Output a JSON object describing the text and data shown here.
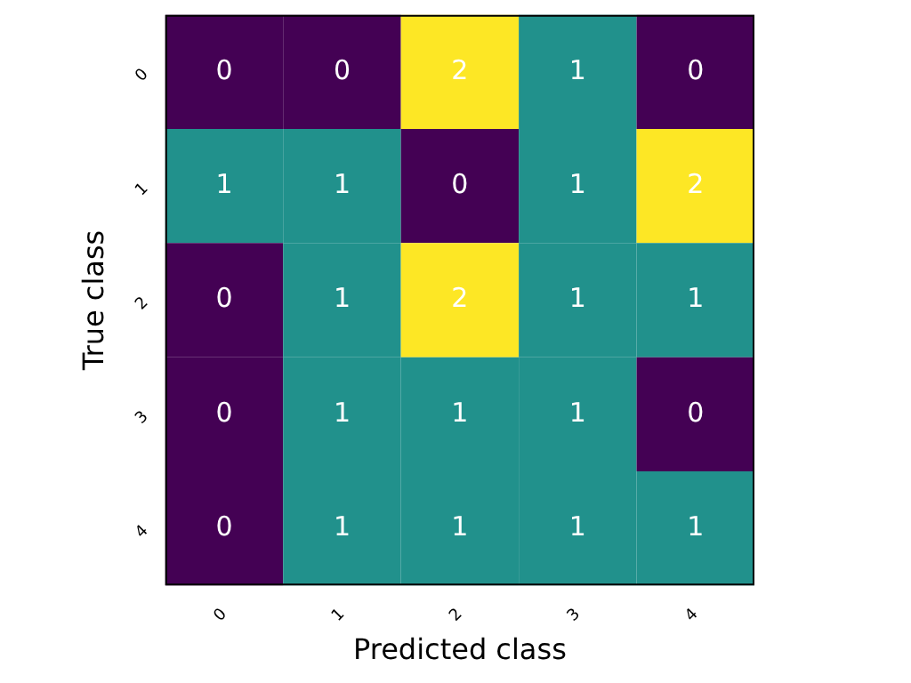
{
  "chart_data": {
    "type": "heatmap",
    "xlabel": "Predicted class",
    "ylabel": "True class",
    "categories": [
      "0",
      "1",
      "2",
      "3",
      "4"
    ],
    "y_categories": [
      "0",
      "1",
      "2",
      "3",
      "4"
    ],
    "cells": [
      [
        0,
        0,
        2,
        1,
        0
      ],
      [
        1,
        1,
        0,
        1,
        2
      ],
      [
        0,
        1,
        2,
        1,
        1
      ],
      [
        0,
        1,
        1,
        1,
        0
      ],
      [
        0,
        1,
        1,
        1,
        1
      ]
    ],
    "data_labels": true
  }
}
